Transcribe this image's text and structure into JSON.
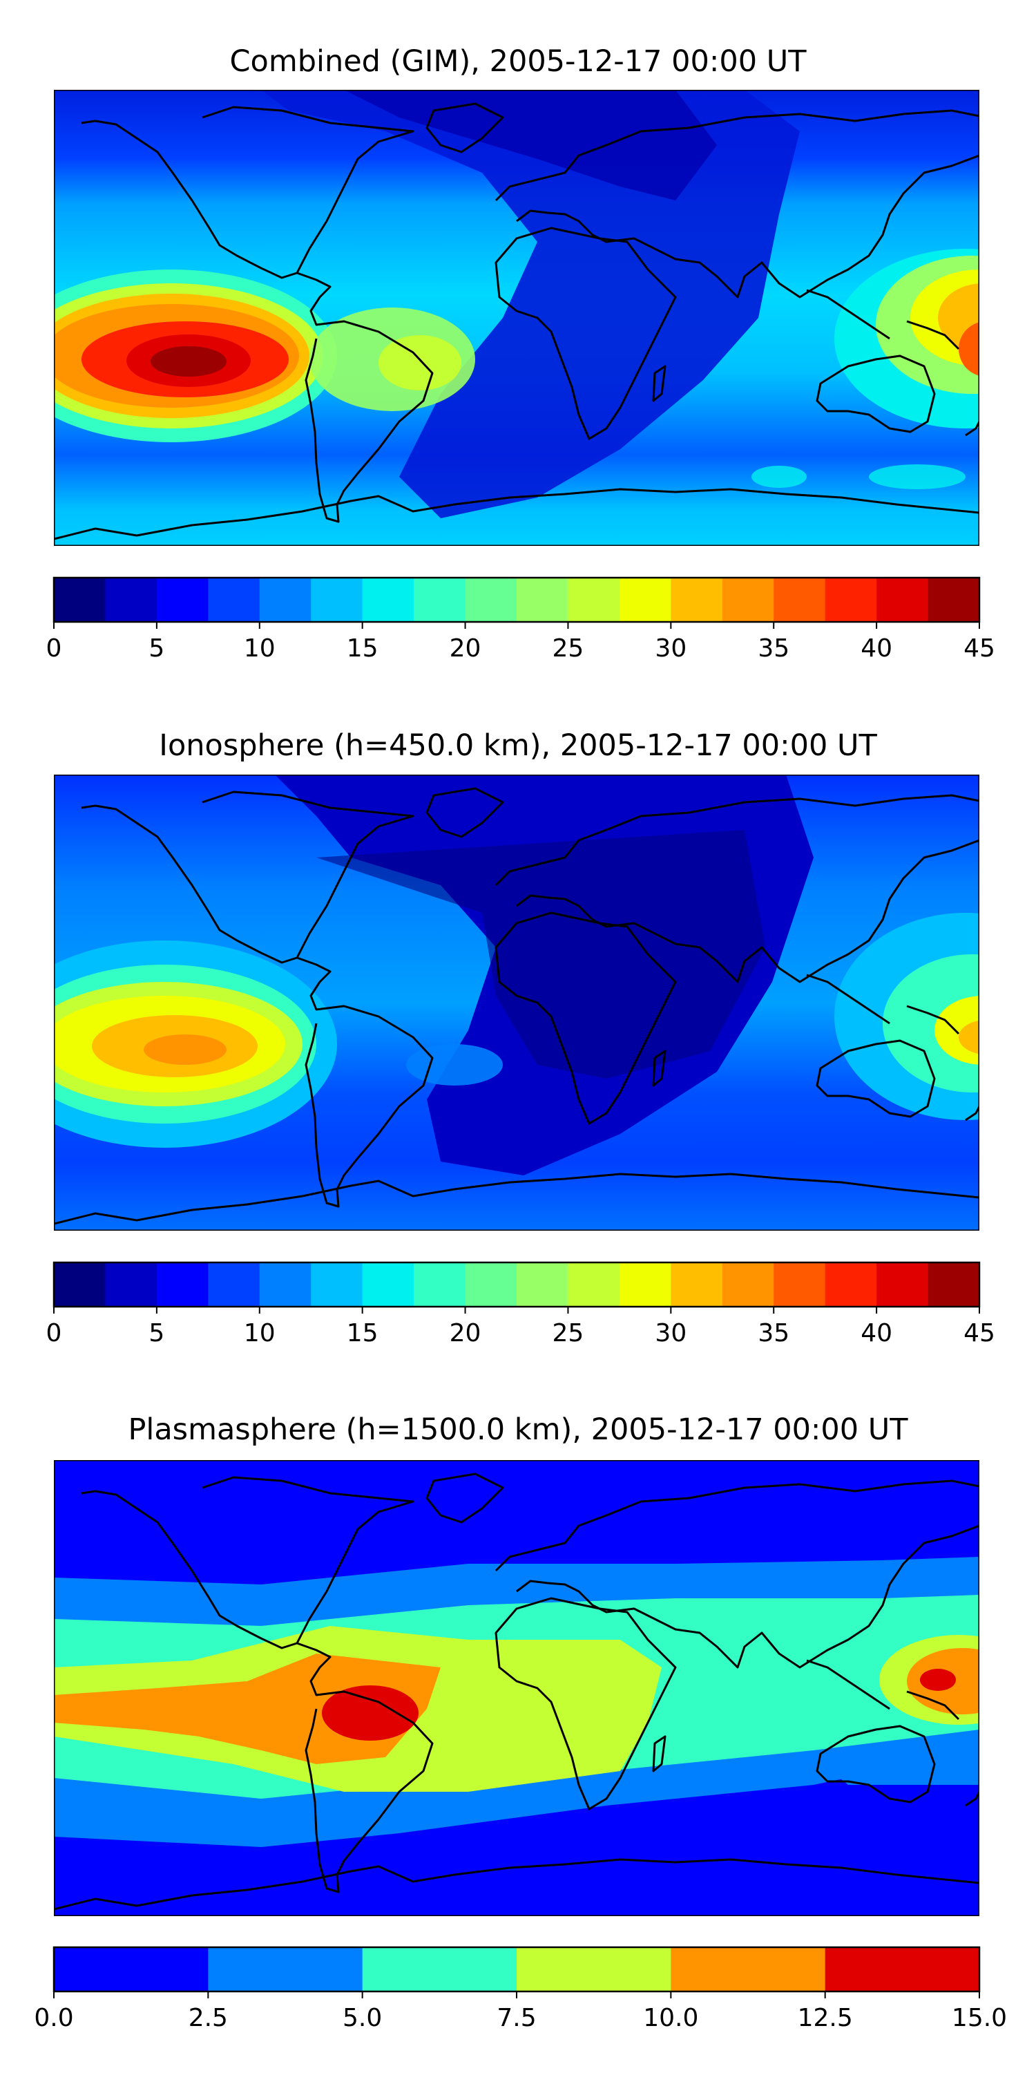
{
  "panels": [
    {
      "title": "Combined (GIM), 2005-12-17 00:00 UT",
      "colorbar": {
        "colors": [
          "#00007f",
          "#0000c4",
          "#0000ff",
          "#0040ff",
          "#0080ff",
          "#00bfff",
          "#00f0f0",
          "#33ffc4",
          "#66ff94",
          "#99ff66",
          "#c4ff33",
          "#f0ff00",
          "#ffbf00",
          "#ff9400",
          "#ff5a00",
          "#ff2200",
          "#e00000",
          "#9c0000"
        ],
        "ticks": [
          "0",
          "5",
          "10",
          "15",
          "20",
          "25",
          "30",
          "35",
          "40",
          "45"
        ]
      }
    },
    {
      "title": "Ionosphere  (h=450.0 km), 2005-12-17 00:00 UT",
      "colorbar": {
        "colors": [
          "#00007f",
          "#0000c4",
          "#0000ff",
          "#0040ff",
          "#0080ff",
          "#00bfff",
          "#00f0f0",
          "#33ffc4",
          "#66ff94",
          "#99ff66",
          "#c4ff33",
          "#f0ff00",
          "#ffbf00",
          "#ff9400",
          "#ff5a00",
          "#ff2200",
          "#e00000",
          "#9c0000"
        ],
        "ticks": [
          "0",
          "5",
          "10",
          "15",
          "20",
          "25",
          "30",
          "35",
          "40",
          "45"
        ]
      }
    },
    {
      "title": "Plasmasphere (h=1500.0 km), 2005-12-17 00:00 UT",
      "colorbar": {
        "colors": [
          "#0000ff",
          "#0080ff",
          "#33ffc4",
          "#c4ff33",
          "#ff9400",
          "#e00000"
        ],
        "ticks": [
          "0.0",
          "2.5",
          "5.0",
          "7.5",
          "10.0",
          "12.5",
          "15.0"
        ]
      }
    }
  ]
}
